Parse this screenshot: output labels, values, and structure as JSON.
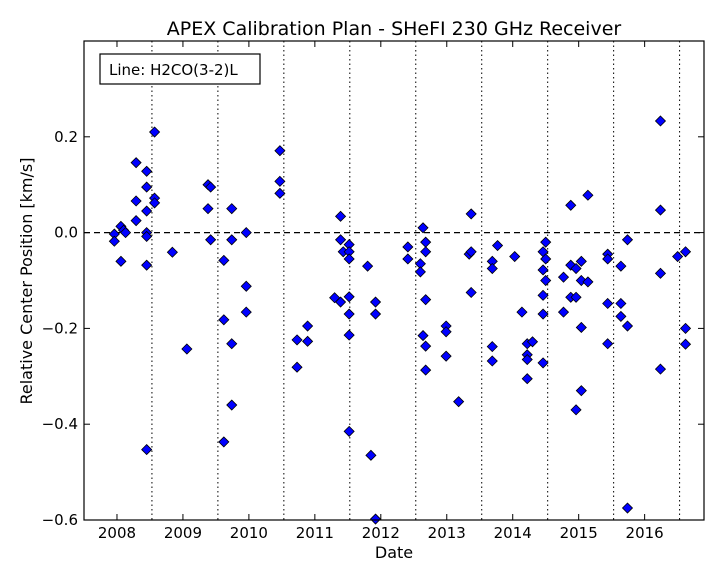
{
  "chart_data": {
    "type": "scatter",
    "title": "APEX Calibration Plan - SHeFI 230 GHz Receiver",
    "xlabel": "Date",
    "ylabel": "Relative Center Position [km/s]",
    "xlim": [
      2007.5,
      2016.9
    ],
    "ylim": [
      -0.6,
      0.4
    ],
    "xticks": [
      2008,
      2009,
      2010,
      2011,
      2012,
      2013,
      2014,
      2015,
      2016
    ],
    "xtick_labels": [
      "2008",
      "2009",
      "2010",
      "2011",
      "2012",
      "2013",
      "2014",
      "2015",
      "2016"
    ],
    "yticks": [
      -0.6,
      -0.4,
      -0.2,
      0.0,
      0.2
    ],
    "ytick_labels": [
      "−0.6",
      "−0.4",
      "−0.2",
      "0.0",
      "0.2"
    ],
    "vlines_dotted": [
      2008.53,
      2009.53,
      2010.53,
      2011.53,
      2012.53,
      2013.53,
      2014.53,
      2015.53,
      2016.53
    ],
    "hline_dashed": 0.0,
    "grid": false,
    "legend_text": "Line: H2CO(3-2)L",
    "legend_position": "top-left",
    "marker_color": "#0000ff",
    "points": [
      [
        2007.96,
        -0.003
      ],
      [
        2007.96,
        -0.018
      ],
      [
        2008.06,
        -0.06
      ],
      [
        2008.06,
        0.013
      ],
      [
        2008.1,
        0.005
      ],
      [
        2008.13,
        0.0
      ],
      [
        2008.29,
        0.146
      ],
      [
        2008.29,
        0.066
      ],
      [
        2008.29,
        0.025
      ],
      [
        2008.45,
        0.128
      ],
      [
        2008.45,
        0.095
      ],
      [
        2008.45,
        0.045
      ],
      [
        2008.45,
        0.0
      ],
      [
        2008.45,
        -0.008
      ],
      [
        2008.45,
        -0.068
      ],
      [
        2008.45,
        -0.453
      ],
      [
        2008.57,
        0.21
      ],
      [
        2008.57,
        0.072
      ],
      [
        2008.57,
        0.062
      ],
      [
        2008.84,
        -0.041
      ],
      [
        2009.06,
        -0.243
      ],
      [
        2009.38,
        0.1
      ],
      [
        2009.38,
        0.05
      ],
      [
        2009.42,
        0.095
      ],
      [
        2009.42,
        -0.015
      ],
      [
        2009.62,
        -0.058
      ],
      [
        2009.62,
        -0.182
      ],
      [
        2009.62,
        -0.437
      ],
      [
        2009.74,
        0.05
      ],
      [
        2009.74,
        -0.015
      ],
      [
        2009.74,
        -0.232
      ],
      [
        2009.74,
        -0.36
      ],
      [
        2009.96,
        0.0
      ],
      [
        2009.96,
        -0.112
      ],
      [
        2009.96,
        -0.166
      ],
      [
        2010.47,
        0.171
      ],
      [
        2010.47,
        0.107
      ],
      [
        2010.47,
        0.082
      ],
      [
        2010.73,
        -0.224
      ],
      [
        2010.73,
        -0.281
      ],
      [
        2010.89,
        -0.195
      ],
      [
        2010.89,
        -0.227
      ],
      [
        2011.3,
        -0.136
      ],
      [
        2011.39,
        0.034
      ],
      [
        2011.39,
        -0.015
      ],
      [
        2011.39,
        -0.145
      ],
      [
        2011.43,
        -0.04
      ],
      [
        2011.52,
        -0.025
      ],
      [
        2011.52,
        -0.04
      ],
      [
        2011.52,
        -0.055
      ],
      [
        2011.52,
        -0.134
      ],
      [
        2011.52,
        -0.17
      ],
      [
        2011.52,
        -0.214
      ],
      [
        2011.52,
        -0.415
      ],
      [
        2011.8,
        -0.07
      ],
      [
        2011.85,
        -0.465
      ],
      [
        2011.92,
        -0.145
      ],
      [
        2011.92,
        -0.17
      ],
      [
        2011.92,
        -0.598
      ],
      [
        2012.41,
        -0.03
      ],
      [
        2012.41,
        -0.055
      ],
      [
        2012.6,
        -0.065
      ],
      [
        2012.6,
        -0.082
      ],
      [
        2012.64,
        0.01
      ],
      [
        2012.64,
        -0.215
      ],
      [
        2012.68,
        -0.02
      ],
      [
        2012.68,
        -0.04
      ],
      [
        2012.68,
        -0.14
      ],
      [
        2012.68,
        -0.237
      ],
      [
        2012.68,
        -0.287
      ],
      [
        2012.99,
        -0.195
      ],
      [
        2012.99,
        -0.207
      ],
      [
        2012.99,
        -0.258
      ],
      [
        2013.18,
        -0.353
      ],
      [
        2013.34,
        -0.045
      ],
      [
        2013.37,
        0.039
      ],
      [
        2013.37,
        -0.04
      ],
      [
        2013.37,
        -0.125
      ],
      [
        2013.69,
        -0.06
      ],
      [
        2013.69,
        -0.075
      ],
      [
        2013.69,
        -0.238
      ],
      [
        2013.69,
        -0.268
      ],
      [
        2013.77,
        -0.027
      ],
      [
        2014.03,
        -0.05
      ],
      [
        2014.14,
        -0.166
      ],
      [
        2014.22,
        -0.232
      ],
      [
        2014.22,
        -0.255
      ],
      [
        2014.22,
        -0.265
      ],
      [
        2014.22,
        -0.305
      ],
      [
        2014.3,
        -0.228
      ],
      [
        2014.46,
        -0.04
      ],
      [
        2014.46,
        -0.078
      ],
      [
        2014.46,
        -0.131
      ],
      [
        2014.46,
        -0.17
      ],
      [
        2014.46,
        -0.272
      ],
      [
        2014.5,
        -0.02
      ],
      [
        2014.5,
        -0.055
      ],
      [
        2014.5,
        -0.1
      ],
      [
        2014.77,
        -0.093
      ],
      [
        2014.77,
        -0.166
      ],
      [
        2014.88,
        0.057
      ],
      [
        2014.88,
        -0.068
      ],
      [
        2014.88,
        -0.135
      ],
      [
        2014.96,
        -0.075
      ],
      [
        2014.96,
        -0.135
      ],
      [
        2014.96,
        -0.37
      ],
      [
        2015.04,
        -0.06
      ],
      [
        2015.04,
        -0.1
      ],
      [
        2015.04,
        -0.198
      ],
      [
        2015.04,
        -0.33
      ],
      [
        2015.14,
        0.078
      ],
      [
        2015.14,
        -0.103
      ],
      [
        2015.44,
        -0.045
      ],
      [
        2015.44,
        -0.055
      ],
      [
        2015.44,
        -0.148
      ],
      [
        2015.44,
        -0.232
      ],
      [
        2015.64,
        -0.07
      ],
      [
        2015.64,
        -0.148
      ],
      [
        2015.64,
        -0.175
      ],
      [
        2015.74,
        -0.015
      ],
      [
        2015.74,
        -0.195
      ],
      [
        2015.74,
        -0.575
      ],
      [
        2016.24,
        0.233
      ],
      [
        2016.24,
        0.047
      ],
      [
        2016.24,
        -0.085
      ],
      [
        2016.24,
        -0.285
      ],
      [
        2016.5,
        -0.05
      ],
      [
        2016.62,
        -0.04
      ],
      [
        2016.62,
        -0.2
      ],
      [
        2016.62,
        -0.233
      ]
    ]
  }
}
